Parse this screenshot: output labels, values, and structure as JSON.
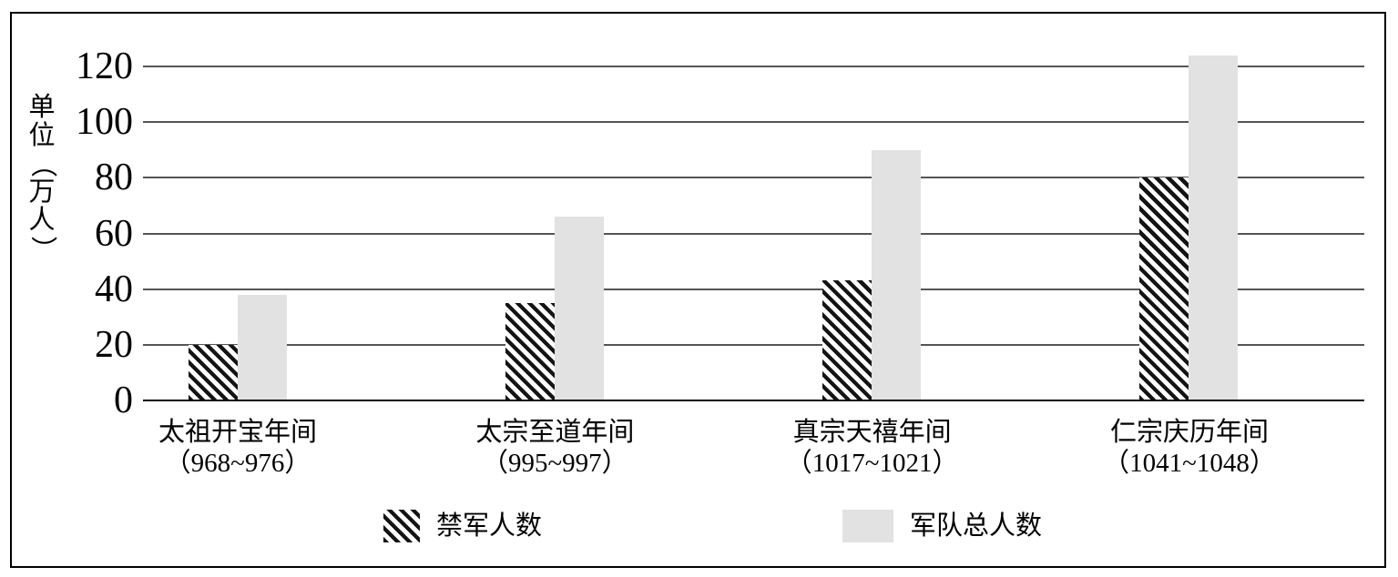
{
  "chart_data": {
    "type": "bar",
    "title": "",
    "ylabel": "单位（万人）",
    "ylabel_chars": [
      "单",
      "位",
      "（",
      "万",
      "人",
      "）"
    ],
    "yticks": [
      0,
      20,
      40,
      60,
      80,
      100,
      120
    ],
    "ylim": [
      0,
      130
    ],
    "grid": true,
    "legend_position": "bottom",
    "categories": [
      {
        "era": "太祖开宝年间",
        "years": "（968~976）"
      },
      {
        "era": "太宗至道年间",
        "years": "（995~997）"
      },
      {
        "era": "真宗天禧年间",
        "years": "（1017~1021）"
      },
      {
        "era": "仁宗庆历年间",
        "years": "（1041~1048）"
      }
    ],
    "series": [
      {
        "name": "禁军人数",
        "style": "hatched",
        "values": [
          20,
          35,
          43,
          80
        ]
      },
      {
        "name": "军队总人数",
        "style": "solid",
        "values": [
          38,
          66,
          90,
          124
        ]
      }
    ]
  },
  "colors": {
    "background": "#ffffff",
    "frame_border": "#000000",
    "gridline": "#555555",
    "baseline": "#111111",
    "bar_gray": "#e2e2e2",
    "hatch_dark": "#141414",
    "text": "#000000"
  }
}
